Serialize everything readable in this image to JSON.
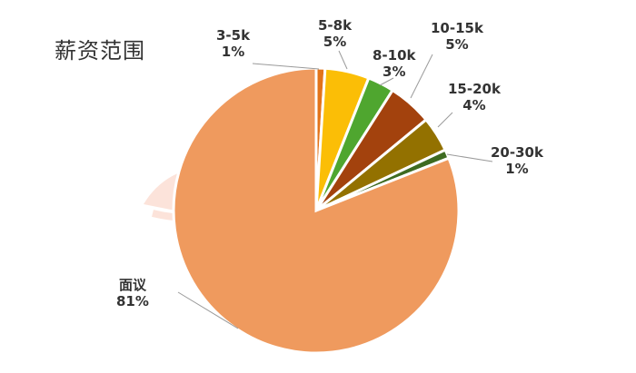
{
  "chart_data": {
    "type": "pie",
    "title": "薪资范围",
    "slices": [
      {
        "label": "3-5k",
        "pct_label": "1%",
        "value": 1,
        "color": "#e2731a"
      },
      {
        "label": "5-8k",
        "pct_label": "5%",
        "value": 5,
        "color": "#fbbe06"
      },
      {
        "label": "8-10k",
        "pct_label": "3%",
        "value": 3,
        "color": "#4fa62f"
      },
      {
        "label": "10-15k",
        "pct_label": "5%",
        "value": 5,
        "color": "#a3420d"
      },
      {
        "label": "15-20k",
        "pct_label": "4%",
        "value": 4,
        "color": "#937100"
      },
      {
        "label": "20-30k",
        "pct_label": "1%",
        "value": 1,
        "color": "#3e6b21"
      },
      {
        "label": "面议",
        "pct_label": "81%",
        "value": 81,
        "color": "#ef9a5e"
      }
    ]
  }
}
